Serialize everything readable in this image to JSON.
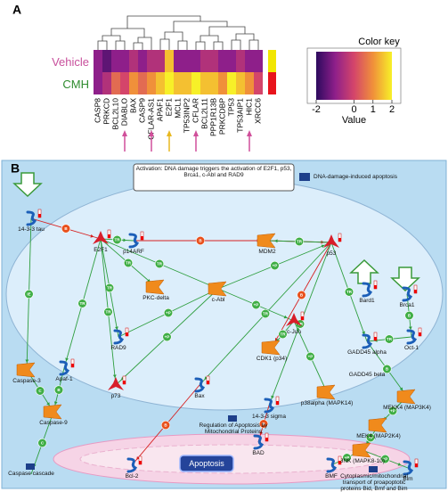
{
  "panel_a": {
    "letter": "A",
    "heatmap": {
      "rows": [
        "Vehicle",
        "CMH"
      ],
      "row_colors": [
        "#c8509c",
        "#2e8b2e"
      ],
      "side_colors": [
        "#f2e600",
        "#e8141c"
      ],
      "columns": [
        "CASP8",
        "PRKCD",
        "BCL2L10",
        "DIABLO",
        "BAX",
        "CASP9",
        "CFLAR-AS1",
        "APAF1",
        "E2F1",
        "MCL1",
        "TP53INP2",
        "CFLAR",
        "BCL2L11",
        "PPP1R13B",
        "PRKCDBP",
        "TP53",
        "TP53AIP1",
        "HIC1",
        "XRCC6"
      ],
      "values": [
        [
          -1,
          -1.5,
          -1,
          -1,
          -0.5,
          -1,
          -0.5,
          -0.5,
          1.5,
          -1,
          -1,
          -1,
          -0.5,
          -0.5,
          -1,
          -1,
          -0.5,
          -1,
          -1
        ],
        [
          -1,
          -0.5,
          0.5,
          0,
          1,
          0.5,
          1,
          1.5,
          2,
          1.5,
          1.5,
          2,
          1.5,
          1.5,
          1,
          2,
          1.5,
          1,
          0
        ]
      ],
      "colorscale": [
        [
          -2,
          "#2d0a5e"
        ],
        [
          -1,
          "#8e1f8a"
        ],
        [
          0,
          "#d4456a"
        ],
        [
          1,
          "#f0903a"
        ],
        [
          2,
          "#f7f028"
        ]
      ]
    },
    "color_key": {
      "title": "Color key",
      "axis_label": "Value",
      "xlim": [
        -2,
        2
      ],
      "xticks": [
        -2,
        0,
        1,
        2
      ]
    }
  },
  "panel_b": {
    "letter": "B",
    "callout": "Activation: DNA damage triggers the activation of E2F1, p53, Brca1, c-Abl and RAD9",
    "legend": "DNA-damage-induced apoptosis",
    "nodes": [
      "14-3-3 tau",
      "p14ARF",
      "E2F1",
      "MDM2",
      "p53",
      "Bard1",
      "Brca1",
      "PKC-delta",
      "c-Abl",
      "Oct-1",
      "GADD45 alpha",
      "GADD45 beta",
      "RAD9",
      "CDK1 (p34)",
      "c-Jun",
      "Caspase-3",
      "Apaf-1",
      "p73",
      "Bax",
      "p38alpha (MAPK14)",
      "MEKK4 (MAP3K4)",
      "MEK4 (MAP2K4)",
      "14-3-3 sigma",
      "Regulation of Apoptosis by Mitochondrial Proteins",
      "BAD",
      "Caspase-9",
      "Apoptosis",
      "JNK (MAPK8-10)",
      "Bcl-2",
      "BMF",
      "Bim",
      "Caspase cascade",
      "Cytoplasmic/mitochondrial transport of proapoptotic proteins Bid, Bmf and Bim"
    ],
    "edges": [
      {
        "from": 0,
        "to": 2,
        "label": "B",
        "color": "#d62020"
      },
      {
        "from": 2,
        "to": 1,
        "label": "TR",
        "color": "#2e9e3e"
      },
      {
        "from": 1,
        "to": 3,
        "label": "B",
        "color": "#d62020"
      },
      {
        "from": 3,
        "to": 4,
        "label": "B",
        "color": "#d62020"
      },
      {
        "from": 4,
        "to": 3,
        "label": "TR",
        "color": "#2e9e3e"
      },
      {
        "from": 8,
        "to": 4,
        "label": "+P",
        "color": "#2e9e3e"
      },
      {
        "from": 2,
        "to": 7,
        "label": "TR",
        "color": "#2e9e3e"
      },
      {
        "from": 2,
        "to": 8,
        "label": "TR",
        "color": "#2e9e3e"
      },
      {
        "from": 2,
        "to": 12,
        "label": "TR",
        "color": "#2e9e3e"
      },
      {
        "from": 2,
        "to": 16,
        "label": "TR",
        "color": "#2e9e3e"
      },
      {
        "from": 2,
        "to": 17,
        "label": "TR",
        "color": "#2e9e3e"
      },
      {
        "from": 0,
        "to": 15,
        "label": "IE",
        "color": "#2e9e3e"
      },
      {
        "from": 15,
        "to": 25,
        "label": "C",
        "color": "#2e9e3e"
      },
      {
        "from": 16,
        "to": 25,
        "label": "B",
        "color": "#2e9e3e"
      },
      {
        "from": 8,
        "to": 14,
        "label": "+P",
        "color": "#2e9e3e"
      },
      {
        "from": 8,
        "to": 17,
        "label": "+P",
        "color": "#2e9e3e"
      },
      {
        "from": 8,
        "to": 12,
        "label": "+P",
        "color": "#2e9e3e"
      },
      {
        "from": 4,
        "to": 13,
        "label": "B",
        "color": "#d62020"
      },
      {
        "from": 4,
        "to": 18,
        "label": "TR",
        "color": "#2e9e3e"
      },
      {
        "from": 4,
        "to": 22,
        "label": "TR",
        "color": "#2e9e3e"
      },
      {
        "from": 4,
        "to": 10,
        "label": "TR",
        "color": "#2e9e3e"
      },
      {
        "from": 6,
        "to": 9,
        "label": "B",
        "color": "#2e9e3e"
      },
      {
        "from": 9,
        "to": 10,
        "label": "TR",
        "color": "#2e9e3e"
      },
      {
        "from": 10,
        "to": 20,
        "label": "B",
        "color": "#2e9e3e"
      },
      {
        "from": 20,
        "to": 21,
        "label": "+P",
        "color": "#2e9e3e"
      },
      {
        "from": 21,
        "to": 27,
        "label": "+P",
        "color": "#2e9e3e"
      },
      {
        "from": 19,
        "to": 14,
        "label": "+P",
        "color": "#2e9e3e"
      },
      {
        "from": 27,
        "to": 30,
        "label": "+P",
        "color": "#2e9e3e"
      },
      {
        "from": 27,
        "to": 29,
        "label": "+P",
        "color": "#2e9e3e"
      },
      {
        "from": 18,
        "to": 28,
        "label": "B",
        "color": "#d62020"
      },
      {
        "from": 22,
        "to": 24,
        "label": "B",
        "color": "#d62020"
      },
      {
        "from": 25,
        "to": 31,
        "label": "C",
        "color": "#2e9e3e"
      },
      {
        "from": 14,
        "to": 13,
        "label": "TR",
        "color": "#2e9e3e"
      }
    ]
  }
}
